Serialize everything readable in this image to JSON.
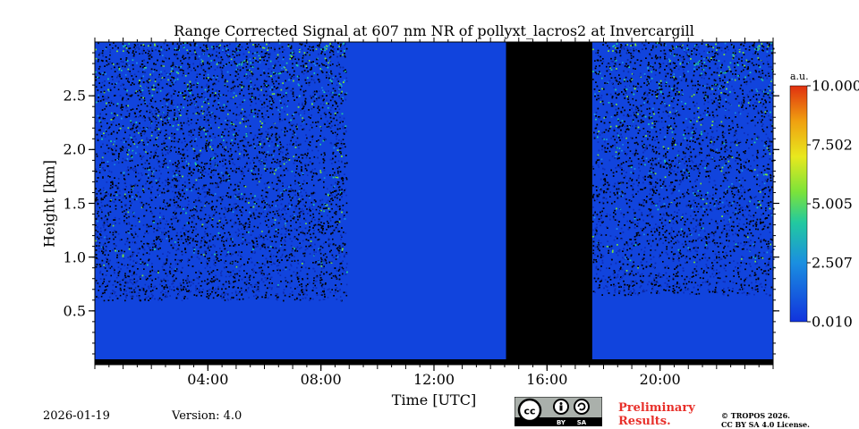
{
  "chart_data": {
    "type": "heatmap",
    "title": "Range Corrected Signal at 607 nm NR of pollyxt_lacros2 at Invercargill",
    "xlabel": "Time [UTC]",
    "ylabel": "Height [km]",
    "xlim": [
      0,
      24
    ],
    "ylim": [
      0,
      3.0
    ],
    "x_ticks": [
      {
        "value": 4,
        "label": "04:00"
      },
      {
        "value": 8,
        "label": "08:00"
      },
      {
        "value": 12,
        "label": "12:00"
      },
      {
        "value": 16,
        "label": "16:00"
      },
      {
        "value": 20,
        "label": "20:00"
      }
    ],
    "y_ticks": [
      {
        "value": 0.5,
        "label": "0.5"
      },
      {
        "value": 1.0,
        "label": "1.0"
      },
      {
        "value": 1.5,
        "label": "1.5"
      },
      {
        "value": 2.0,
        "label": "2.0"
      },
      {
        "value": 2.5,
        "label": "2.5"
      }
    ],
    "colorbar": {
      "units": "a.u.",
      "range": [
        0.01,
        10.0
      ],
      "ticks": [
        {
          "value": 0.01,
          "label": "0.010"
        },
        {
          "value": 2.507,
          "label": "2.507"
        },
        {
          "value": 5.005,
          "label": "5.005"
        },
        {
          "value": 7.502,
          "label": "7.502"
        },
        {
          "value": 10.0,
          "label": "10.000"
        }
      ],
      "colors": [
        "#1133dd",
        "#1a8fe0",
        "#22c9a0",
        "#7be33a",
        "#e8e81e",
        "#f0a010",
        "#e03010"
      ]
    },
    "no_data_gaps": [
      {
        "start": 14.55,
        "end": 17.6
      }
    ],
    "regimes": [
      {
        "start": 0.0,
        "end": 8.9,
        "signal_top_km": 0.6,
        "noise": "high"
      },
      {
        "start": 8.9,
        "end": 14.55,
        "signal_top_km": 3.0,
        "noise": "low"
      },
      {
        "start": 17.6,
        "end": 24.0,
        "signal_top_km": 0.65,
        "noise": "high"
      }
    ],
    "colors": {
      "background_signal": "#1144dd",
      "gap": "#000000"
    }
  },
  "footer": {
    "date": "2026-01-19",
    "version": "Version: 4.0",
    "preliminary": "Preliminary\nResults.",
    "copyright": "© TROPOS 2026.\nCC BY SA 4.0 License."
  },
  "license_badge": {
    "cc": "cc",
    "by": "BY",
    "sa": "SA"
  }
}
